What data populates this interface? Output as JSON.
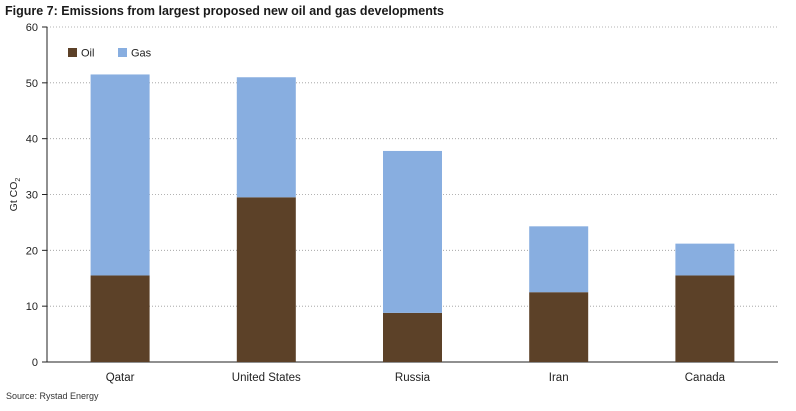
{
  "figure_title": "Figure 7: Emissions from largest proposed new oil and gas developments",
  "source": "Source: Rystad Energy",
  "colors": {
    "oil": "#5c4128",
    "gas": "#88aee0",
    "grid": "#9a9a9a",
    "axis": "#222222"
  },
  "chart_data": {
    "type": "bar",
    "stacked": true,
    "title": "Figure 7: Emissions from largest proposed new oil and gas developments",
    "ylabel_main": "Gt CO",
    "ylabel_sub": "2",
    "xlabel": "",
    "ylim": [
      0,
      60
    ],
    "yticks": [
      0,
      10,
      20,
      30,
      40,
      50,
      60
    ],
    "grid": "dotted horizontal",
    "legend_position": "top-left",
    "categories": [
      "Qatar",
      "United States",
      "Russia",
      "Iran",
      "Canada"
    ],
    "series": [
      {
        "name": "Oil",
        "values": [
          15.5,
          29.5,
          8.8,
          12.5,
          15.5
        ]
      },
      {
        "name": "Gas",
        "values": [
          36.0,
          21.5,
          29.0,
          11.8,
          5.7
        ]
      }
    ]
  }
}
